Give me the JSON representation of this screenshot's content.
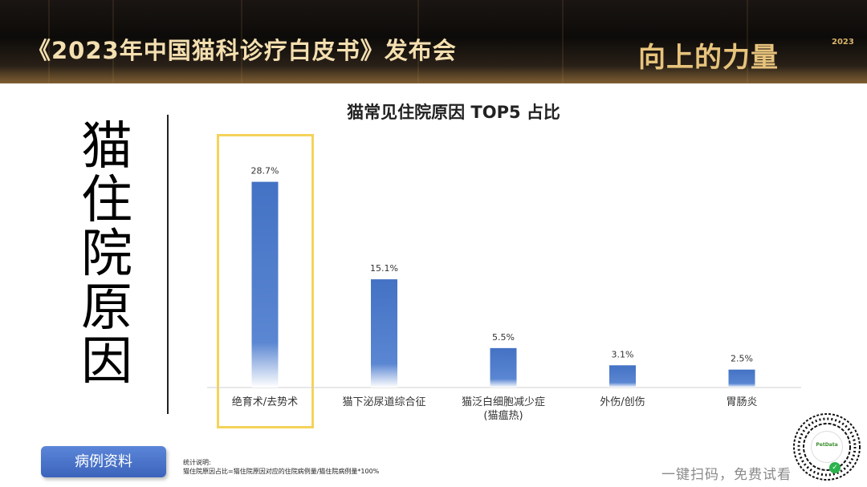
{
  "banner": {
    "title": "《2023年中国猫科诊疗白皮书》发布会",
    "brand": "向上的力量",
    "brand_year": "2023"
  },
  "side_title": "猫住院原因",
  "chart_data": {
    "type": "bar",
    "title": "猫常见住院原因 TOP5 占比",
    "categories": [
      "绝育术/去势术",
      "猫下泌尿道综合征",
      "猫泛白细胞减少症\n(猫瘟热)",
      "外伤/创伤",
      "胃肠炎"
    ],
    "values": [
      28.7,
      15.1,
      5.5,
      3.1,
      2.5
    ],
    "value_labels": [
      "28.7%",
      "15.1%",
      "5.5%",
      "3.1%",
      "2.5%"
    ],
    "unit": "%",
    "ylim": [
      0,
      30
    ],
    "grid": false,
    "legend": "none",
    "highlighted_category": "绝育术/去势术",
    "bar_color": "#4472c4",
    "highlight_color": "#f5d35a"
  },
  "button": {
    "label": "病例资料"
  },
  "note": {
    "line1": "统计说明:",
    "line2": "猫住院原因占比=猫住院原因对应的住院病例量/猫住院病例量*100%"
  },
  "qr": {
    "logo_text": "PetData",
    "scan_text": "一键扫码，免费试看"
  }
}
